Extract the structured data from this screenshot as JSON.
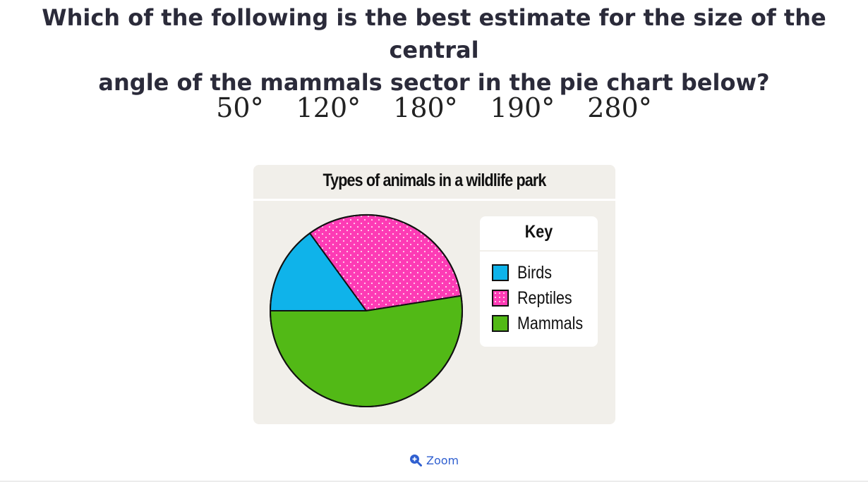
{
  "question": {
    "line1": "Which of the following is the best estimate for the size of the central",
    "line2": "angle of the mammals sector in the pie chart below?"
  },
  "options": [
    "50°",
    "120°",
    "180°",
    "190°",
    "280°"
  ],
  "chart_data": {
    "type": "pie",
    "title": "Types of animals in a wildlife park",
    "legend_title": "Key",
    "legend_position": "right",
    "slices": [
      {
        "name": "Birds",
        "degrees": 54,
        "color": "#0fb3ea",
        "pattern": "solid"
      },
      {
        "name": "Reptiles",
        "degrees": 117,
        "color": "#fd3bb5",
        "pattern": "dotted"
      },
      {
        "name": "Mammals",
        "degrees": 189,
        "color": "#52b916",
        "pattern": "solid"
      }
    ]
  },
  "zoom": {
    "label": "Zoom",
    "icon": "zoom-in-icon"
  }
}
